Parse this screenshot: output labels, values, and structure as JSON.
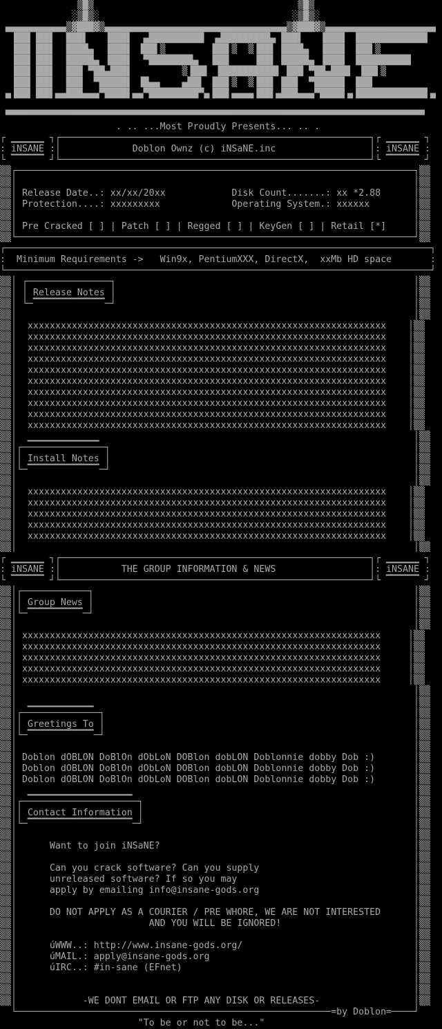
{
  "palette": {
    "foreground": "#a8a8a8",
    "background": "#000000"
  },
  "content": {
    "group_name": "iNSANE",
    "presents_line": ". .. ...Most Proudly Presents... .. .",
    "release_title": "Doblon Ownz (c) iNSaNE.inc",
    "release_info": {
      "release_date_label": "Release Date..:",
      "release_date": "xx/xx/20xx",
      "protection_label": "Protection....:",
      "protection": "xxxxxxxxx",
      "disk_count_label": "Disk Count.......:",
      "disk_count": "xx *2.88",
      "operating_system_label": "Operating System.:",
      "operating_system": "xxxxxx",
      "flags": "Pre Cracked [ ] | Patch [ ] | Regged [ ] | KeyGen [ ] | Retail [*]"
    },
    "minimum_requirements": "Minimum Requirements ->   Win9x, PentiumXXX, DirectX,  xxMb HD space",
    "group_header": "THE GROUP INFORMATION & NEWS",
    "section_labels": [
      "Release Notes",
      "Install Notes",
      "Group News",
      "Greetings To",
      "Contact Information"
    ],
    "greetings": "Doblon dOBLON DoBlOn dObLoN DOBlon dobLON Doblonnie dobby Dob :)",
    "contact": {
      "join": "Want to join iNSaNE?",
      "apply_text": "Can you crack software? Can you supply unreleased software? If so you may apply by emailing info@insane-gods.org",
      "warning": "DO NOT APPLY AS A COURIER / PRE WHORE, WE ARE NOT INTERESTED AND YOU WILL BE IGNORED!",
      "www": "http://www.insane-gods.org/",
      "mail": "apply@insane-gods.org",
      "irc": "#in-sane (EFnet)",
      "note": "-WE DONT EMAIL OR FTP ANY DISK OR RELEASES-"
    },
    "signature": "=by Doblon=",
    "quote": "\"To be or not to be...\""
  },
  "screen": {
    "logo": [
      "              ▒█▒                                     ▒█▒",
      "             ░▒█▒░                                   ░▒█▒░",
      " ▄▄▄▄▄▄▄▄▄▄▄▒▓███▓▒▄▄▄▄▄▄▄▄▄▄▄▄▄▄▄▄▄▄▄▄▄▄▄▄▄▄▄▄▄▄▄▄▄▒▓███▓▒▄▄▄▄▄▄▄▄▄▄▄▄▄▄▄▄▄▄▄▄",
      "  ▐██▌▐██▌  ███▌   ▐███▌  ▄██████████  ▄█████████▄ ███▌   ▐███▌ ▐████████████▌",
      "  ▐██▌▐██▌  ████▄  ▐███▌ ▐██▌▒        ▐██▌▒  ▒▐██▌ ████▄  ▐███▌ ▐██▌▒",
      "  ▐██▌▐██▌  █████▄ ▐███▌  ▀████████▄  ▐██▌    ▐██▌ █████▄ ▐███▌ ▐█████████▌",
      "  ▐██▌▐██▌  ███ ▀██▄███▌         ▒▐██▌ ▐██████████▌ ███ ▀██▄███▌ ▐██▌▒",
      "  ▐██▌▐██▌  ███  ▀█████▌ ▐█▄▄    ▄██▌ ▐██▌▒  ▒▐██▌ ███  ▀█████▌ ▐██▌",
      " ▄▐██▌▐██▌▄▄███▄▄▄▀████▌▄▄▀█████████▀▄▐██▌▄▄▄▄▐██▌▄███▄▄▄▀████▌▄▐████████████▌▄",
      "",
      " ▀▀▀▀▀▀▀▀▀▀▀▀▀▀▀▀▀▀▀▀▀▀▀▀▀▀▀▀▀▀▀▀▀▀▀▀▀▀▀▀▀▀▀▀▀▀▀▀▀▀▀▀▀▀▀▀▀▀▀▀▀▀▀▀▀▀▀▀▀▀▀▀▀▀▀▀"
    ],
    "presents": [
      "                     . .. ...Most Proudly Presents... .. ."
    ],
    "header_bar_release": [
      "┌ ▁▁▁▁▁▁ ┐┌────────────────────────────────────────────────────────┐┌ ▁▁▁▁▁▁ ┐",
      ": iNSANE :│             Doblon Ownz (c) iNSaNE.inc                 │: iNSANE :",
      "└ ▔▔▔▔▔▔ ┘└────────────────────────────────────────────────────────┘└ ▔▔▔▔▔▔ ┘"
    ],
    "release_info": [
      "▒▒┌────────────────────────────────────────────────────────────────────────┐▒▒",
      "▒▒│                                                                        │▒▒",
      "▒▒│ Release Date..: xx/xx/20xx            Disk Count.......: xx *2.88      │▒▒",
      "▒▒│ Protection....: xxxxxxxxx             Operating System.: xxxxxx        │▒▒",
      "▒▒│                                                                        │▒▒",
      "▒▒│ Pre Cracked [ ] | Patch [ ] | Regged [ ] | KeyGen [ ] | Retail [*]     │▒▒",
      "▒▒└────────────────────────────────────────────────────────────────────────┘▒▒"
    ],
    "min_requirements": [
      "┌─────────────────────────────────────────────────────────────────────────────┐",
      ":  Minimum Requirements ->   Win9x, PentiumXXX, DirectX,  xxMb HD space       :",
      "└─────────────────────────────────────────────────────────────────────────────┘"
    ],
    "notes": [
      "▒▒│ ┌───────────────┐                                                      │▒▒",
      "▒▒│ │ Release Notes │                                                      │▒▒",
      "▒▒│ └─▔▔▔▔▔▔▔▔▔▔▔▔▔─┘                                                      │▒▒",
      "▒▒│                                                                        │▒▒",
      "▒▒│  xxxxxxxxxxxxxxxxxxxxxxxxxxxxxxxxxxxxxxxxxxxxxxxxxxxxxxxxxxxxxxxxx    │▒▒",
      "▒▒│  xxxxxxxxxxxxxxxxxxxxxxxxxxxxxxxxxxxxxxxxxxxxxxxxxxxxxxxxxxxxxxxxx    │▒▒",
      "▒▒│  xxxxxxxxxxxxxxxxxxxxxxxxxxxxxxxxxxxxxxxxxxxxxxxxxxxxxxxxxxxxxxxxx    │▒▒",
      "▒▒│  xxxxxxxxxxxxxxxxxxxxxxxxxxxxxxxxxxxxxxxxxxxxxxxxxxxxxxxxxxxxxxxxx    │▒▒",
      "▒▒│  xxxxxxxxxxxxxxxxxxxxxxxxxxxxxxxxxxxxxxxxxxxxxxxxxxxxxxxxxxxxxxxxx    │▒▒",
      "▒▒│  xxxxxxxxxxxxxxxxxxxxxxxxxxxxxxxxxxxxxxxxxxxxxxxxxxxxxxxxxxxxxxxxx    │▒▒",
      "▒▒│  xxxxxxxxxxxxxxxxxxxxxxxxxxxxxxxxxxxxxxxxxxxxxxxxxxxxxxxxxxxxxxxxx    │▒▒",
      "▒▒│  xxxxxxxxxxxxxxxxxxxxxxxxxxxxxxxxxxxxxxxxxxxxxxxxxxxxxxxxxxxxxxxxx    │▒▒",
      "▒▒│  xxxxxxxxxxxxxxxxxxxxxxxxxxxxxxxxxxxxxxxxxxxxxxxxxxxxxxxxxxxxxxxxx    │▒▒",
      "▒▒│  xxxxxxxxxxxxxxxxxxxxxxxxxxxxxxxxxxxxxxxxxxxxxxxxxxxxxxxxxxxxxxxxx    │▒▒",
      "▒▒│  ▁▁▁▁▁▁▁▁▁▁▁▁▁                                                         │▒▒",
      "▒▒│┌───────────────┐                                                       │▒▒",
      "▒▒││ Install Notes │                                                       │▒▒",
      "▒▒│└─▔▔▔▔▔▔▔▔▔▔▔▔▔─┘                                                       │▒▒",
      "▒▒│                                                                        │▒▒",
      "▒▒│  xxxxxxxxxxxxxxxxxxxxxxxxxxxxxxxxxxxxxxxxxxxxxxxxxxxxxxxxxxxxxxxxx    │▒▒",
      "▒▒│  xxxxxxxxxxxxxxxxxxxxxxxxxxxxxxxxxxxxxxxxxxxxxxxxxxxxxxxxxxxxxxxxx    │▒▒",
      "▒▒│  xxxxxxxxxxxxxxxxxxxxxxxxxxxxxxxxxxxxxxxxxxxxxxxxxxxxxxxxxxxxxxxxx    │▒▒",
      "▒▒│  xxxxxxxxxxxxxxxxxxxxxxxxxxxxxxxxxxxxxxxxxxxxxxxxxxxxxxxxxxxxxxxxx    │▒▒",
      "▒▒│  xxxxxxxxxxxxxxxxxxxxxxxxxxxxxxxxxxxxxxxxxxxxxxxxxxxxxxxxxxxxxxxxx    │▒▒",
      "▒▒│                                                                        │▒▒"
    ],
    "header_bar_group": [
      "┌ ▁▁▁▁▁▁ ┐┌────────────────────────────────────────────────────────┐┌ ▁▁▁▁▁▁ ┐",
      ": iNSANE :│           THE GROUP INFORMATION & NEWS                 │: iNSANE :",
      "└ ▔▔▔▔▔▔ ┘└────────────────────────────────────────────────────────┘└ ▔▔▔▔▔▔ ┘"
    ],
    "group": [
      "▒▒│┌────────────┐                                                          │▒▒",
      "▒▒││ Group News │                                                          │▒▒",
      "▒▒│└─▔▔▔▔▔▔▔▔▔▔─┘                                                          │▒▒",
      "▒▒│                                                                        │▒▒",
      "▒▒│ xxxxxxxxxxxxxxxxxxxxxxxxxxxxxxxxxxxxxxxxxxxxxxxxxxxxxxxxxxxxxxxxx     │▒▒",
      "▒▒│ xxxxxxxxxxxxxxxxxxxxxxxxxxxxxxxxxxxxxxxxxxxxxxxxxxxxxxxxxxxxxxxxx     │▒▒",
      "▒▒│ xxxxxxxxxxxxxxxxxxxxxxxxxxxxxxxxxxxxxxxxxxxxxxxxxxxxxxxxxxxxxxxxx     │▒▒",
      "▒▒│ xxxxxxxxxxxxxxxxxxxxxxxxxxxxxxxxxxxxxxxxxxxxxxxxxxxxxxxxxxxxxxxxx     │▒▒",
      "▒▒│ xxxxxxxxxxxxxxxxxxxxxxxxxxxxxxxxxxxxxxxxxxxxxxxxxxxxxxxxxxxxxxxxx     │▒▒",
      "▒▒│                                                                        │▒▒",
      "▒▒│  ▁▁▁▁▁▁▁▁▁▁▁▁                                                          │▒▒",
      "▒▒│┌──────────────┐                                                        │▒▒",
      "▒▒││ Greetings To │                                                        │▒▒",
      "▒▒│└─▔▔▔▔▔▔▔▔▔▔▔▔─┘                                                        │▒▒",
      "▒▒│                                                                        │▒▒",
      "▒▒│ Doblon dOBLON DoBlOn dObLoN DOBlon dobLON Doblonnie dobby Dob :)       │▒▒",
      "▒▒│ Doblon dOBLON DoBlOn dObLoN DOBlon dobLON Doblonnie dobby Dob :)       │▒▒",
      "▒▒│ Doblon dOBLON DoBlOn dObLoN DOBlon dobLON Doblonnie dobby Dob :)       │▒▒",
      "▒▒│  ▁▁▁▁▁▁▁▁▁▁▁▁▁▁▁▁▁▁▁                                                   │▒▒",
      "▒▒│┌─────────────────────┐                                                 │▒▒",
      "▒▒││ Contact Information │                                                 │▒▒",
      "▒▒│└─▔▔▔▔▔▔▔▔▔▔▔▔▔▔▔▔▔▔▔─┘                                                 │▒▒",
      "▒▒│                                                                        │▒▒",
      "▒▒│      Want to join iNSaNE?                                              │▒▒",
      "▒▒│                                                                        │▒▒",
      "▒▒│      Can you crack software? Can you supply                            │▒▒",
      "▒▒│      unreleased software? If so you may                                │▒▒",
      "▒▒│      apply by emailing info@insane-gods.org                            │▒▒",
      "▒▒│                                                                        │▒▒",
      "▒▒│      DO NOT APPLY AS A COURIER / PRE WHORE, WE ARE NOT INTERESTED      │▒▒",
      "▒▒│                        AND YOU WILL BE IGNORED!                        │▒▒",
      "▒▒│                                                                        │▒▒",
      "▒▒│      úWWW..: http://www.insane-gods.org/                               │▒▒",
      "▒▒│      úMAIL.: apply@insane-gods.org                                     │▒▒",
      "▒▒│      úIRC..: #in-sane (EFnet)                                          │▒▒",
      "▒▒│                                                                        │▒▒",
      "▒▒│                                                                        │▒▒",
      "▒▒│            -WE DONT EMAIL OR FTP ANY DISK OR RELEASES-                 │▒▒",
      "  └─────────────────────────────────────────────────────────=by Doblon=────┘"
    ],
    "quote": [
      "                         \"To be or not to be...\""
    ]
  }
}
